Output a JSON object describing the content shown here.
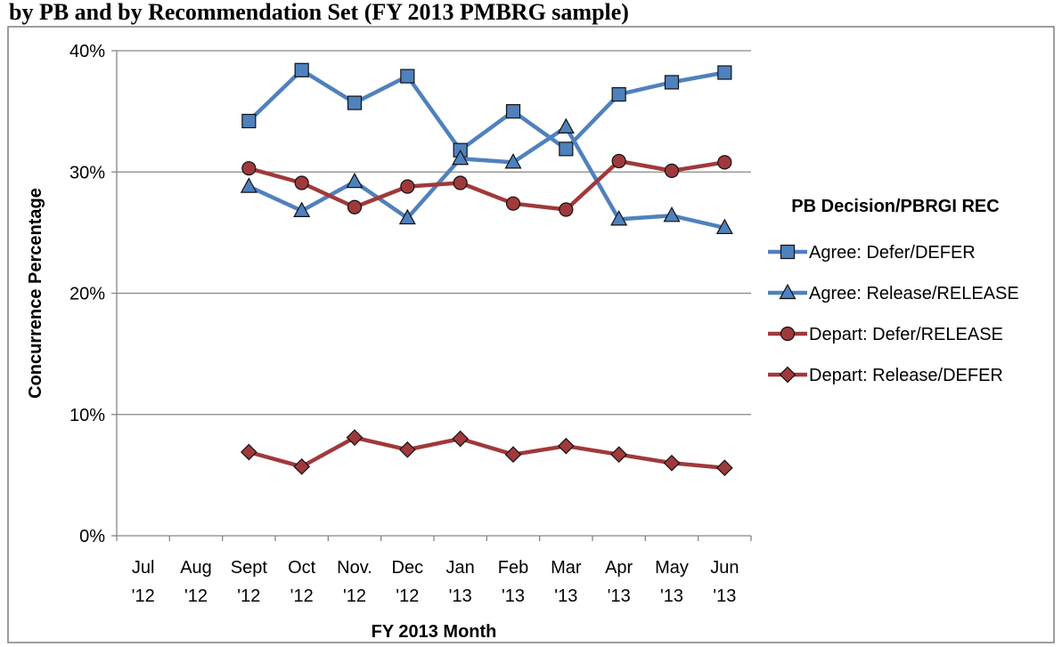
{
  "header": {
    "text": "by PB and by Recommendation Set (FY 2013 PMBRG sample)"
  },
  "chart_data": {
    "type": "line",
    "title": "",
    "xlabel": "FY 2013 Month",
    "ylabel": "Concurrence Percentage",
    "ylim": [
      0,
      40
    ],
    "ytick_labels": [
      "0%",
      "10%",
      "20%",
      "30%",
      "40%"
    ],
    "ytick_values": [
      0,
      10,
      20,
      30,
      40
    ],
    "grid": "horizontal",
    "legend_title": "PB Decision/PBRGI REC",
    "legend_position": "right",
    "categories": [
      {
        "month": "Jul",
        "year": "'12"
      },
      {
        "month": "Aug",
        "year": "'12"
      },
      {
        "month": "Sept",
        "year": "'12"
      },
      {
        "month": "Oct",
        "year": "'12"
      },
      {
        "month": "Nov.",
        "year": "'12"
      },
      {
        "month": "Dec",
        "year": "'12"
      },
      {
        "month": "Jan",
        "year": "'13"
      },
      {
        "month": "Feb",
        "year": "'13"
      },
      {
        "month": "Mar",
        "year": "'13"
      },
      {
        "month": "Apr",
        "year": "'13"
      },
      {
        "month": "May",
        "year": "'13"
      },
      {
        "month": "Jun",
        "year": "'13"
      }
    ],
    "series": [
      {
        "name": "Agree: Defer/DEFER",
        "color": "#4F81BD",
        "marker": "square",
        "values": [
          null,
          null,
          34.2,
          38.4,
          35.7,
          37.9,
          31.8,
          35.0,
          31.9,
          36.4,
          37.4,
          38.2
        ]
      },
      {
        "name": "Agree: Release/RELEASE",
        "color": "#4F81BD",
        "marker": "triangle",
        "values": [
          null,
          null,
          28.8,
          26.8,
          29.2,
          26.2,
          31.1,
          30.8,
          33.7,
          26.1,
          26.4,
          25.4
        ]
      },
      {
        "name": "Depart: Defer/RELEASE",
        "color": "#A0393B",
        "marker": "circle",
        "values": [
          null,
          null,
          30.3,
          29.1,
          27.1,
          28.8,
          29.1,
          27.4,
          26.9,
          30.9,
          30.1,
          30.8
        ]
      },
      {
        "name": "Depart: Release/DEFER",
        "color": "#A0393B",
        "marker": "diamond",
        "values": [
          null,
          null,
          6.9,
          5.7,
          8.1,
          7.1,
          8.0,
          6.7,
          7.4,
          6.7,
          6.0,
          5.6
        ]
      }
    ]
  }
}
